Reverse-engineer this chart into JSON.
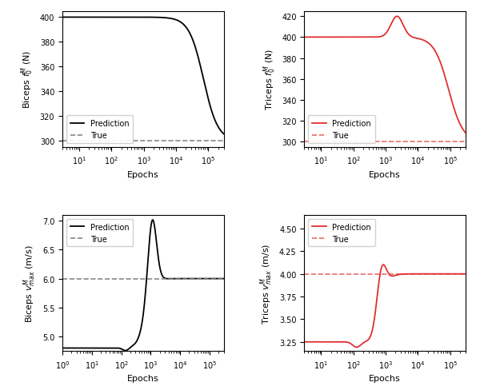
{
  "biceps_f0_true": 300,
  "biceps_f0_ylim": [
    295,
    405
  ],
  "biceps_f0_yticks": [
    300,
    320,
    340,
    360,
    380,
    400
  ],
  "triceps_f0_true": 300,
  "triceps_f0_ylim": [
    295,
    425
  ],
  "triceps_f0_yticks": [
    300,
    320,
    340,
    360,
    380,
    400,
    420
  ],
  "biceps_vmax_true": 6.0,
  "biceps_vmax_ylim": [
    4.75,
    7.1
  ],
  "biceps_vmax_yticks": [
    5.0,
    5.5,
    6.0,
    6.5,
    7.0
  ],
  "triceps_vmax_true": 4.0,
  "triceps_vmax_ylim": [
    3.15,
    4.65
  ],
  "triceps_vmax_yticks": [
    3.25,
    3.5,
    3.75,
    4.0,
    4.25,
    4.5
  ],
  "black_color": "#000000",
  "red_color": "#e03030",
  "gray_dash_color": "#888888"
}
